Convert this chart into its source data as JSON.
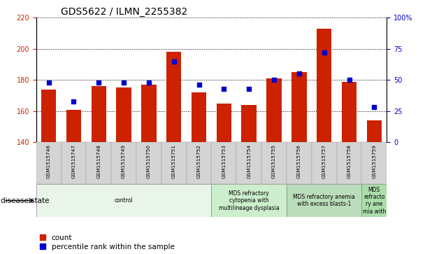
{
  "title": "GDS5622 / ILMN_2255382",
  "samples": [
    "GSM1515746",
    "GSM1515747",
    "GSM1515748",
    "GSM1515749",
    "GSM1515750",
    "GSM1515751",
    "GSM1515752",
    "GSM1515753",
    "GSM1515754",
    "GSM1515755",
    "GSM1515756",
    "GSM1515757",
    "GSM1515758",
    "GSM1515759"
  ],
  "counts": [
    174,
    161,
    176,
    175,
    177,
    198,
    172,
    165,
    164,
    181,
    185,
    213,
    179,
    154
  ],
  "percentile_ranks": [
    48,
    33,
    48,
    48,
    48,
    65,
    46,
    43,
    43,
    50,
    55,
    72,
    50,
    28
  ],
  "ylim_left": [
    140,
    220
  ],
  "ylim_right": [
    0,
    100
  ],
  "yticks_left": [
    140,
    160,
    180,
    200,
    220
  ],
  "yticks_right": [
    0,
    25,
    50,
    75,
    100
  ],
  "bar_color": "#cc2200",
  "dot_color": "#0000cc",
  "grid_color": "#000000",
  "disease_groups": [
    {
      "label": "control",
      "start": 0,
      "end": 7,
      "color": "#e8f5e8"
    },
    {
      "label": "MDS refractory\ncytopenia with\nmultilineage dysplasia",
      "start": 7,
      "end": 10,
      "color": "#cceecc"
    },
    {
      "label": "MDS refractory anemia\nwith excess blasts-1",
      "start": 10,
      "end": 13,
      "color": "#bbddbb"
    },
    {
      "label": "MDS\nrefracto\nry ane\nmia with",
      "start": 13,
      "end": 14,
      "color": "#aaddaa"
    }
  ],
  "legend_count_label": "count",
  "legend_pct_label": "percentile rank within the sample",
  "disease_state_label": "disease state",
  "title_fontsize": 10,
  "tick_fontsize": 7,
  "label_fontsize": 7.5
}
